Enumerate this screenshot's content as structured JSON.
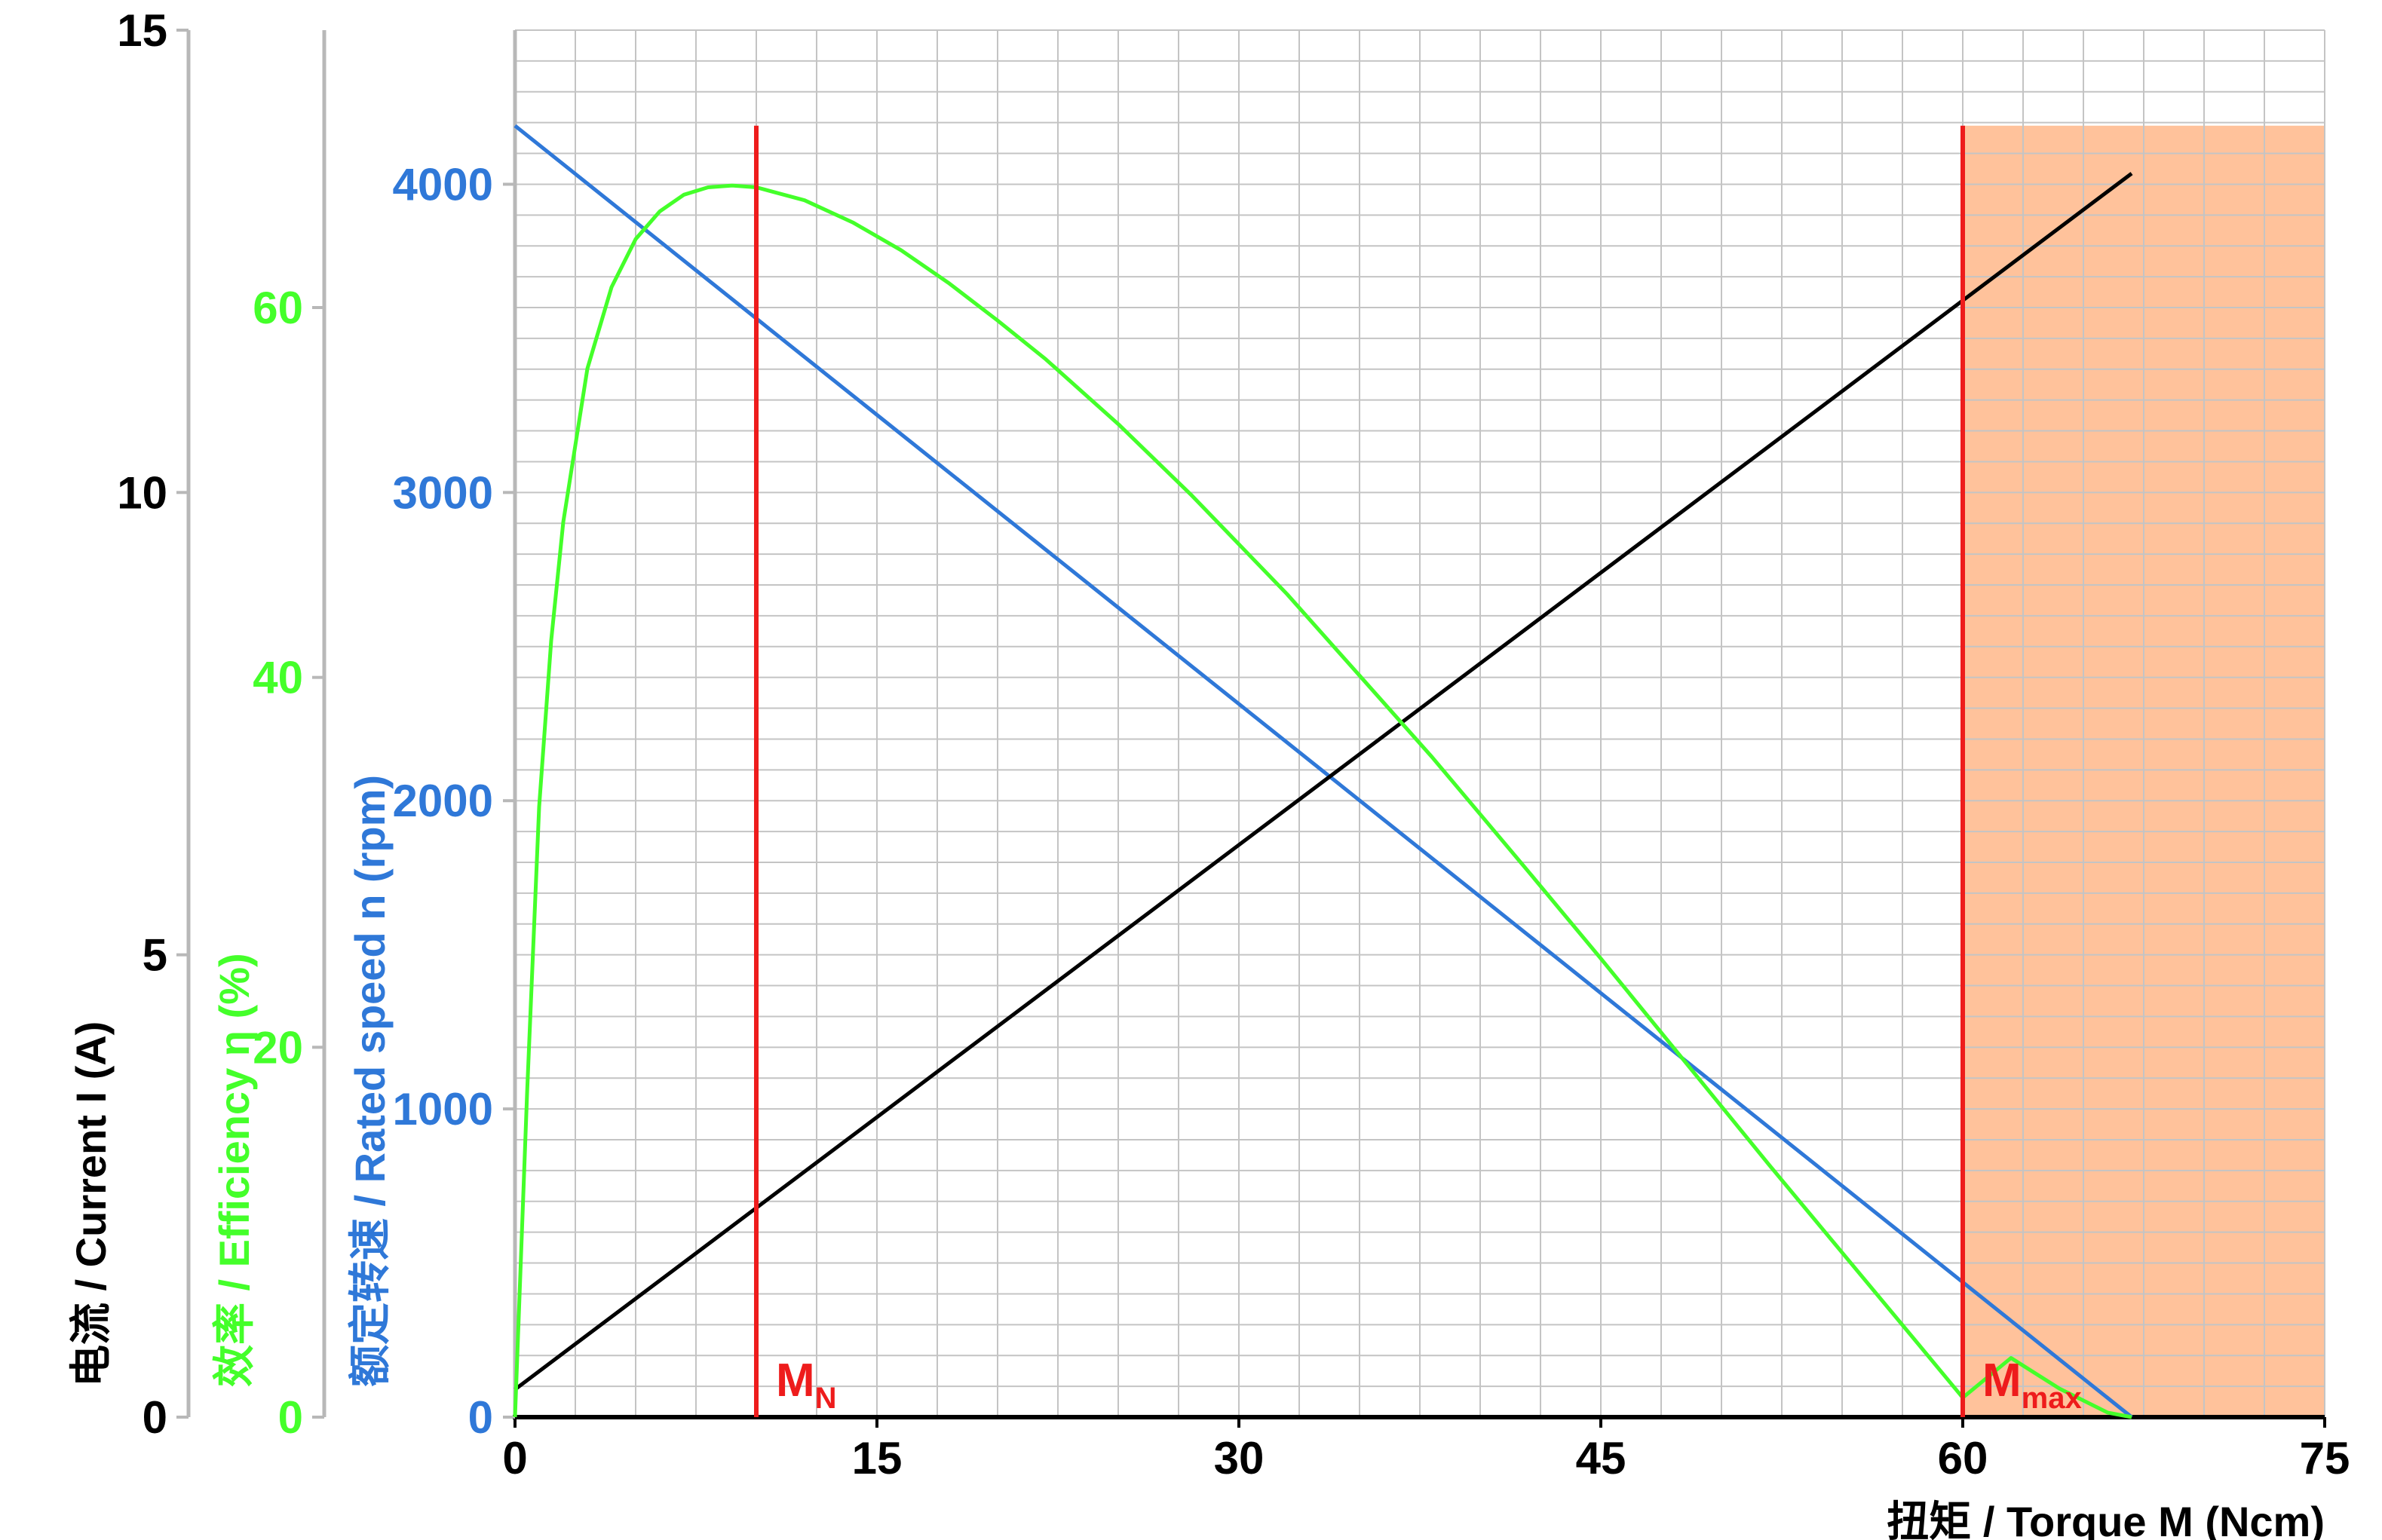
{
  "chart_data": {
    "type": "line",
    "xlabel": "扭矩 / Torque M (Ncm)",
    "xlim": [
      0,
      75
    ],
    "x_ticks": [
      "0",
      "15",
      "30",
      "45",
      "60",
      "75"
    ],
    "axes": {
      "current": {
        "label": "电流 / Current I (A)",
        "range": [
          0,
          15
        ],
        "ticks": [
          "0",
          "5",
          "10",
          "15"
        ],
        "color": "#000000"
      },
      "efficiency": {
        "label": "效率 / Efficiency η (%)",
        "range": [
          0,
          75
        ],
        "ticks": [
          "0",
          "20",
          "40",
          "60"
        ],
        "color": "#44ff2a"
      },
      "speed": {
        "label": "额定转速 / Rated speed n (rpm)",
        "range": [
          0,
          4500
        ],
        "ticks": [
          "0",
          "1000",
          "2000",
          "3000",
          "4000"
        ],
        "color": "#2f78d8"
      }
    },
    "series": [
      {
        "axis": "speed",
        "color": "#2f78d8",
        "x": [
          0,
          67
        ],
        "y": [
          4190,
          0
        ]
      },
      {
        "axis": "current",
        "color": "#000000",
        "x": [
          0,
          67
        ],
        "y": [
          0.3,
          13.45
        ]
      },
      {
        "axis": "efficiency",
        "color": "#44ff2a",
        "x": [
          0,
          0.5,
          1,
          1.5,
          2,
          3,
          4,
          5,
          6,
          7,
          8,
          9,
          10,
          12,
          14,
          16,
          18,
          20,
          22,
          25,
          28,
          30,
          32,
          35,
          38,
          40,
          42,
          45,
          48,
          50,
          52,
          55,
          58,
          60,
          62,
          64,
          66,
          67
        ],
        "y": [
          0,
          17.5,
          33,
          42,
          48.4,
          56.7,
          61.1,
          63.7,
          65.2,
          66.1,
          66.5,
          66.6,
          66.5,
          65.8,
          64.6,
          63.1,
          61.3,
          59.3,
          57.2,
          53.7,
          49.9,
          47.2,
          44.5,
          40.1,
          35.7,
          32.6,
          29.5,
          24.8,
          20.0,
          16.8,
          13.6,
          8.9,
          4.2,
          1.05,
          3.2,
          1.55,
          0.25,
          0
        ]
      }
    ],
    "markers": [
      {
        "x": 10,
        "label": "M",
        "sub": "N",
        "color": "#ee1c1c"
      },
      {
        "x": 60,
        "label": "M",
        "sub": "max",
        "color": "#ee1c1c"
      }
    ],
    "shaded_region": {
      "x_from": 60,
      "x_to": 75,
      "speed_top": 4190,
      "color": "#ffc29b"
    },
    "grid": true
  }
}
